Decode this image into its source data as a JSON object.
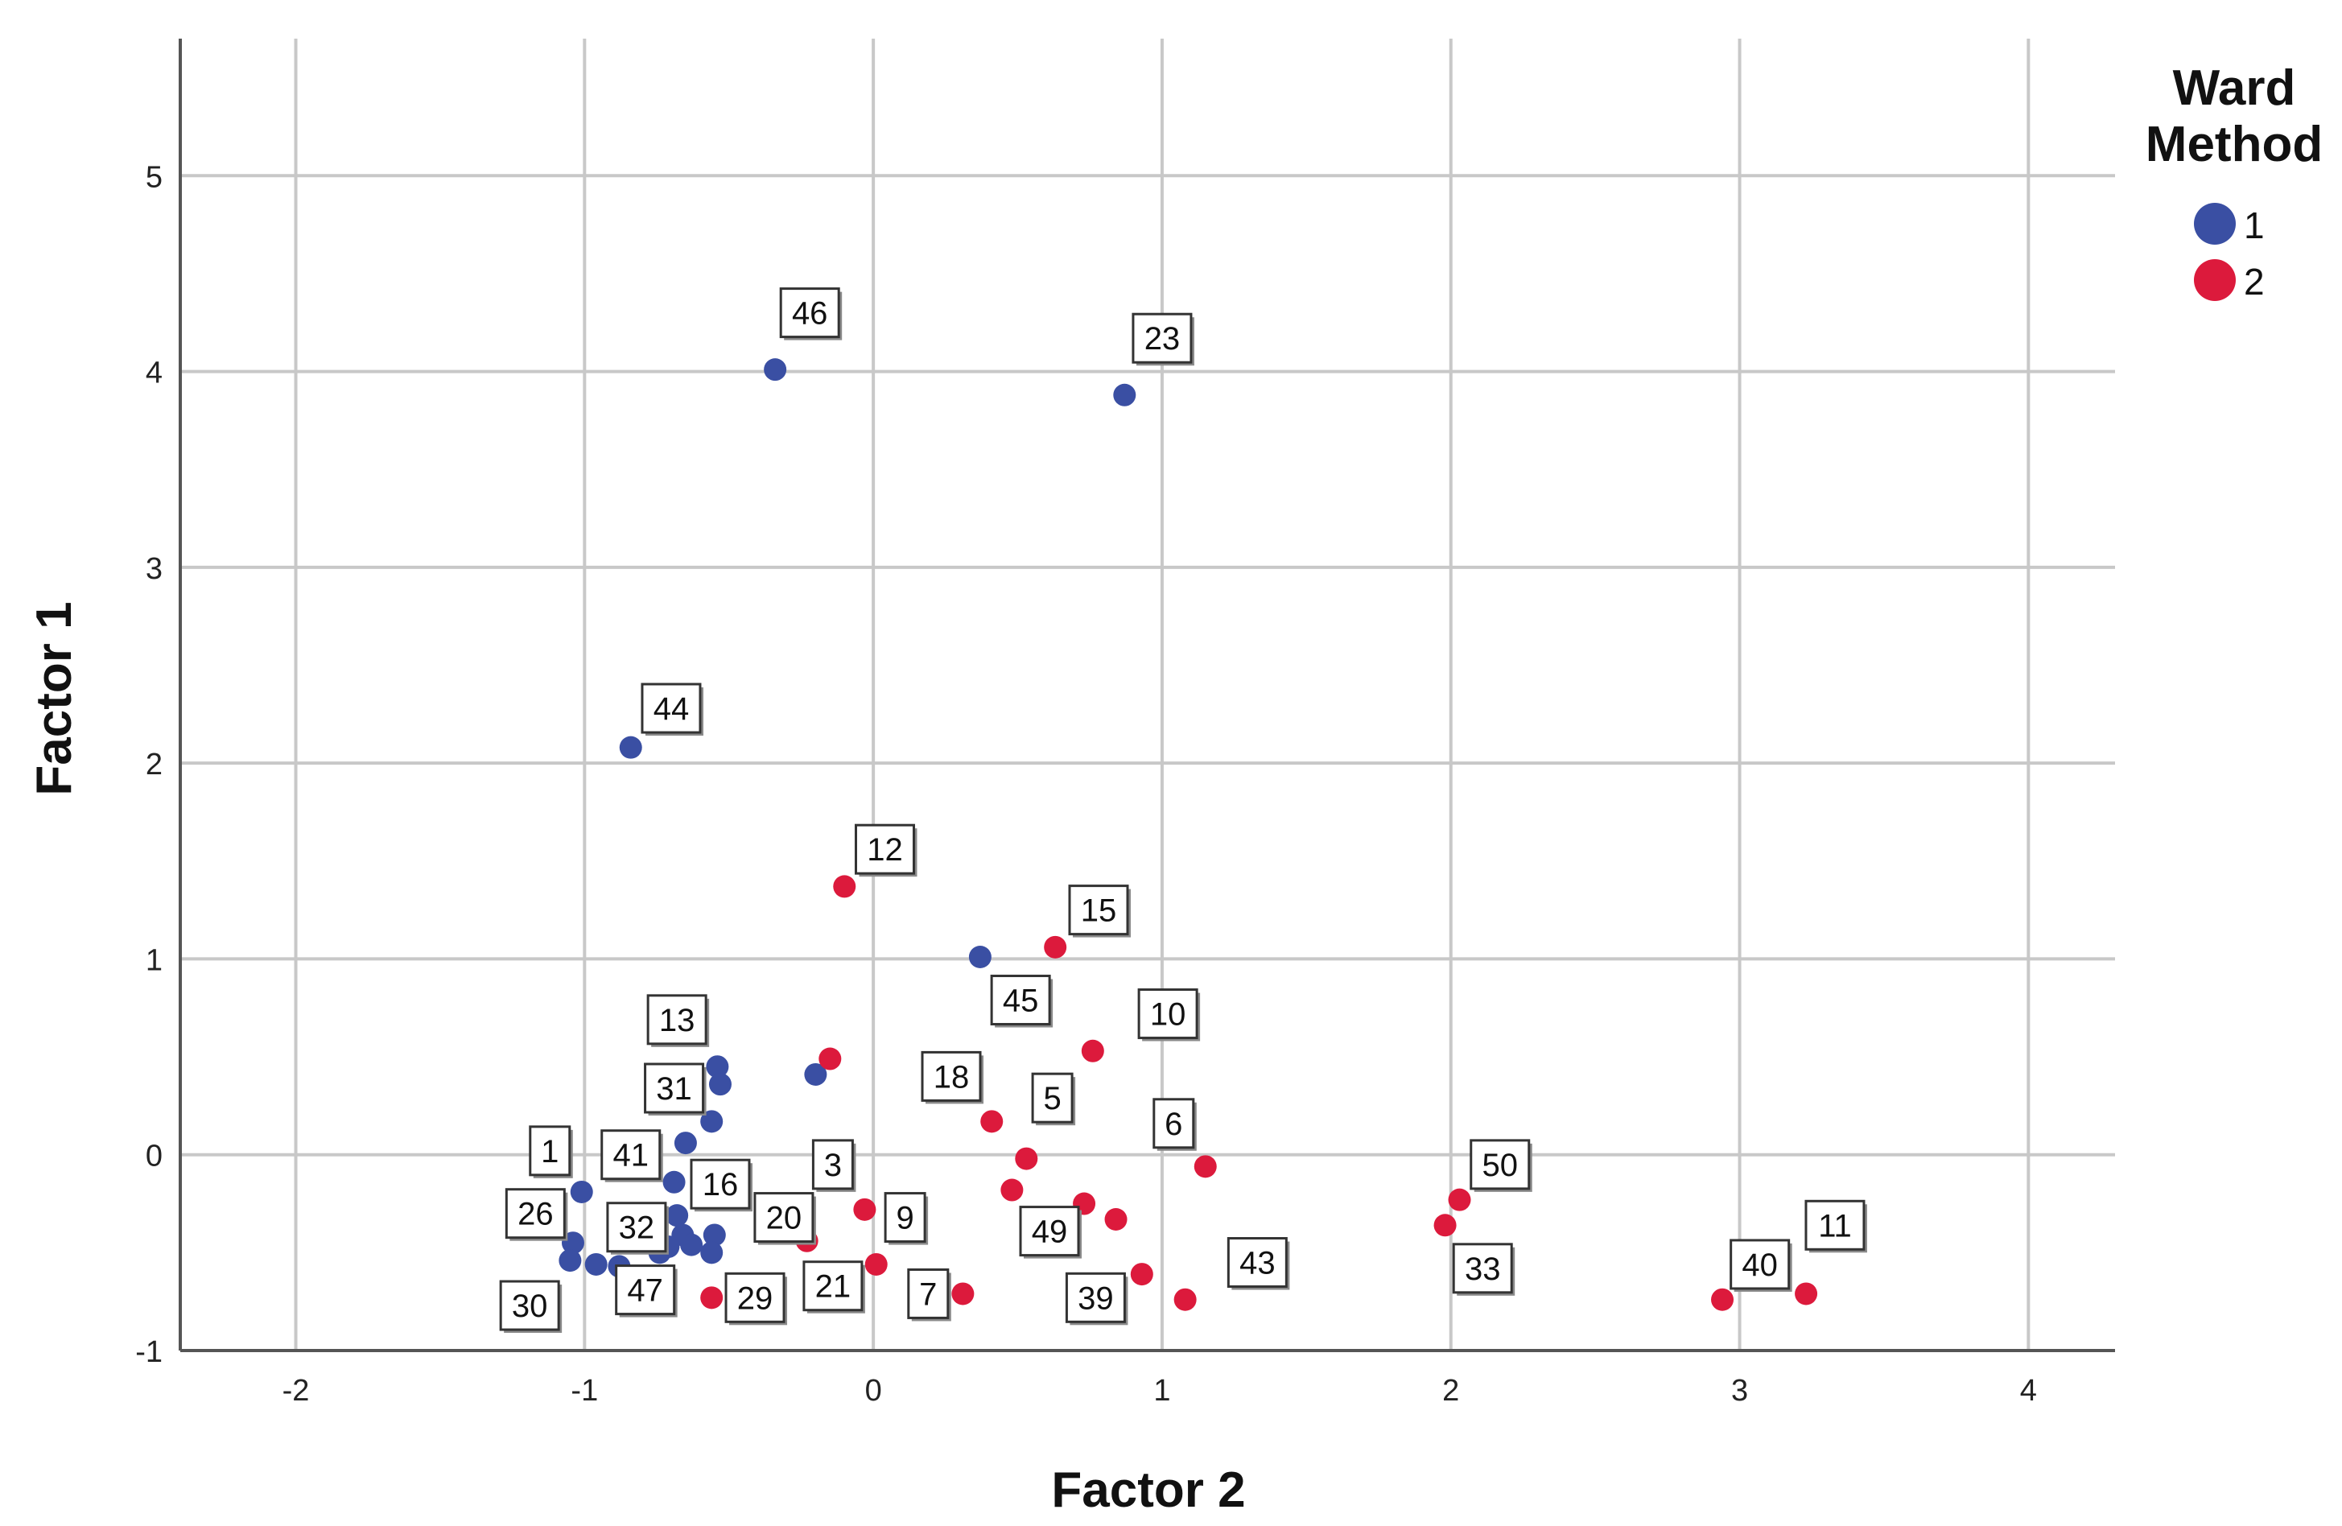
{
  "chart_data": {
    "type": "scatter",
    "xlabel": "Factor 2",
    "ylabel": "Factor 1",
    "xlim": [
      -2.4,
      4.3
    ],
    "ylim": [
      -1.0,
      5.7
    ],
    "xticks": [
      "-2",
      "-1",
      "0",
      "1",
      "2",
      "3",
      "4"
    ],
    "yticks": [
      "-1",
      "0",
      "1",
      "2",
      "3",
      "4",
      "5"
    ],
    "grid": true,
    "legend": {
      "title_line1": "Ward",
      "title_line2": "Method",
      "entries": [
        {
          "label": "1",
          "color": "#3a4fa3"
        },
        {
          "label": "2",
          "color": "#dc1a3c"
        }
      ],
      "placement": "right"
    },
    "series": [
      {
        "name": "1",
        "color": "#3a4fa3",
        "points": [
          [
            -0.34,
            4.01
          ],
          [
            0.87,
            3.88
          ],
          [
            -0.84,
            2.08
          ],
          [
            0.37,
            1.01
          ],
          [
            -0.2,
            0.41
          ],
          [
            -0.54,
            0.45
          ],
          [
            -0.53,
            0.36
          ],
          [
            -0.56,
            0.17
          ],
          [
            -0.65,
            0.06
          ],
          [
            -0.69,
            -0.14
          ],
          [
            -1.01,
            -0.19
          ],
          [
            -0.68,
            -0.31
          ],
          [
            -0.55,
            -0.41
          ],
          [
            -0.66,
            -0.41
          ],
          [
            -0.56,
            -0.5
          ],
          [
            -1.04,
            -0.45
          ],
          [
            -1.05,
            -0.54
          ],
          [
            -0.96,
            -0.56
          ],
          [
            -0.88,
            -0.57
          ],
          [
            -0.74,
            -0.5
          ],
          [
            -0.63,
            -0.46
          ],
          [
            -0.71,
            -0.47
          ]
        ]
      },
      {
        "name": "2",
        "color": "#dc1a3c",
        "points": [
          [
            -0.1,
            1.37
          ],
          [
            0.63,
            1.06
          ],
          [
            0.76,
            0.53
          ],
          [
            -0.15,
            0.49
          ],
          [
            0.41,
            0.17
          ],
          [
            0.53,
            -0.02
          ],
          [
            1.15,
            -0.06
          ],
          [
            0.48,
            -0.18
          ],
          [
            0.73,
            -0.25
          ],
          [
            0.84,
            -0.33
          ],
          [
            -0.03,
            -0.28
          ],
          [
            0.08,
            -0.33
          ],
          [
            -0.23,
            -0.44
          ],
          [
            0.01,
            -0.56
          ],
          [
            0.93,
            -0.61
          ],
          [
            0.31,
            -0.71
          ],
          [
            1.08,
            -0.74
          ],
          [
            -0.56,
            -0.73
          ],
          [
            2.03,
            -0.23
          ],
          [
            1.98,
            -0.36
          ],
          [
            2.94,
            -0.74
          ],
          [
            3.23,
            -0.71
          ]
        ]
      }
    ],
    "annotations": [
      {
        "text": "46",
        "x": -0.22,
        "y": 4.3
      },
      {
        "text": "23",
        "x": 1.0,
        "y": 4.17
      },
      {
        "text": "44",
        "x": -0.7,
        "y": 2.28
      },
      {
        "text": "12",
        "x": 0.04,
        "y": 1.56
      },
      {
        "text": "15",
        "x": 0.78,
        "y": 1.25
      },
      {
        "text": "45",
        "x": 0.51,
        "y": 0.79
      },
      {
        "text": "10",
        "x": 1.02,
        "y": 0.72
      },
      {
        "text": "13",
        "x": -0.68,
        "y": 0.69
      },
      {
        "text": "31",
        "x": -0.69,
        "y": 0.34
      },
      {
        "text": "18",
        "x": 0.27,
        "y": 0.4
      },
      {
        "text": "5",
        "x": 0.62,
        "y": 0.29
      },
      {
        "text": "6",
        "x": 1.04,
        "y": 0.16
      },
      {
        "text": "1",
        "x": -1.12,
        "y": 0.02
      },
      {
        "text": "41",
        "x": -0.84,
        "y": 0.0
      },
      {
        "text": "3",
        "x": -0.14,
        "y": -0.05
      },
      {
        "text": "50",
        "x": 2.17,
        "y": -0.05
      },
      {
        "text": "16",
        "x": -0.53,
        "y": -0.15
      },
      {
        "text": "26",
        "x": -1.17,
        "y": -0.3
      },
      {
        "text": "20",
        "x": -0.31,
        "y": -0.32
      },
      {
        "text": "9",
        "x": 0.11,
        "y": -0.32
      },
      {
        "text": "32",
        "x": -0.82,
        "y": -0.37
      },
      {
        "text": "11",
        "x": 3.33,
        "y": -0.36
      },
      {
        "text": "49",
        "x": 0.61,
        "y": -0.39
      },
      {
        "text": "43",
        "x": 1.33,
        "y": -0.55
      },
      {
        "text": "33",
        "x": 2.11,
        "y": -0.58
      },
      {
        "text": "40",
        "x": 3.07,
        "y": -0.56
      },
      {
        "text": "21",
        "x": -0.14,
        "y": -0.67
      },
      {
        "text": "47",
        "x": -0.79,
        "y": -0.69
      },
      {
        "text": "29",
        "x": -0.41,
        "y": -0.73
      },
      {
        "text": "7",
        "x": 0.19,
        "y": -0.71
      },
      {
        "text": "39",
        "x": 0.77,
        "y": -0.73
      },
      {
        "text": "30",
        "x": -1.19,
        "y": -0.77
      }
    ]
  }
}
